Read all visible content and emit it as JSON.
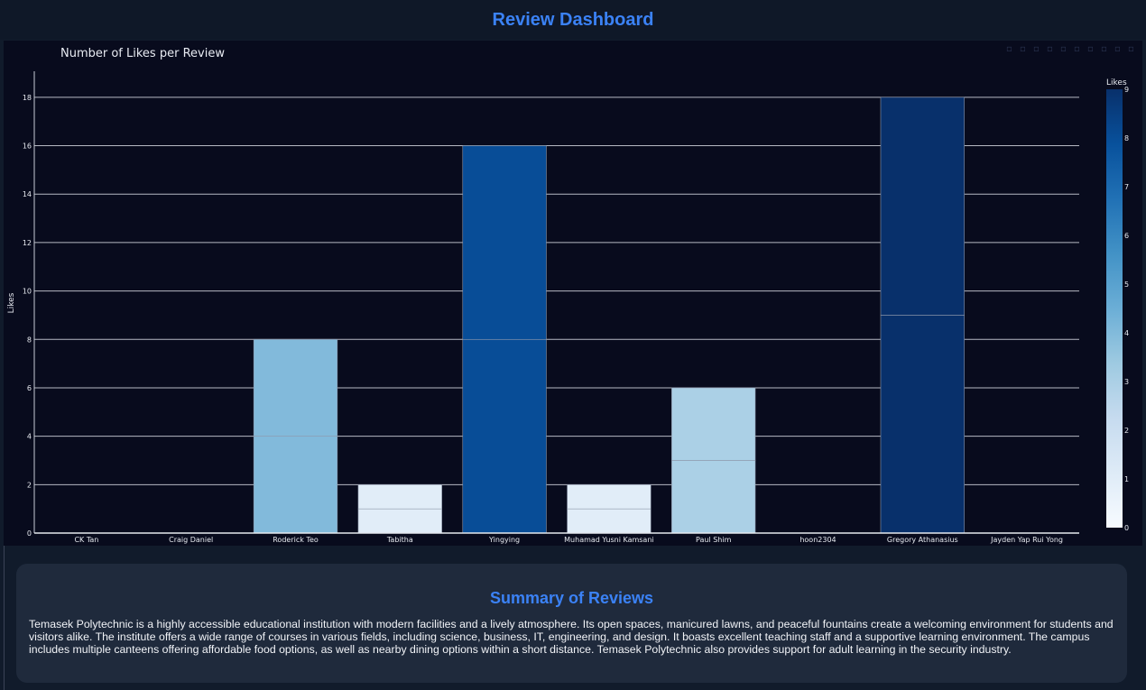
{
  "header": {
    "title": "Review Dashboard"
  },
  "chart_data": {
    "type": "bar",
    "title": "Number of Likes per Review",
    "ylabel": "Likes",
    "xlabel": "",
    "ylim": [
      0,
      19
    ],
    "yticks": [
      0,
      2,
      4,
      6,
      8,
      10,
      12,
      14,
      16,
      18
    ],
    "grid": true,
    "categories": [
      "CK Tan",
      "Craig Daniel",
      "Roderick Teo",
      "Tabitha",
      "Yingying",
      "Muhamad Yusni Kamsani",
      "Paul Shim",
      "hoon2304",
      "Gregory Athanasius",
      "Jayden Yap Rui Yong"
    ],
    "segments": [
      [
        0
      ],
      [
        0
      ],
      [
        4,
        4
      ],
      [
        1,
        1
      ],
      [
        8,
        8
      ],
      [
        1,
        1
      ],
      [
        3,
        3
      ],
      [
        0
      ],
      [
        9,
        9
      ],
      [
        0
      ]
    ],
    "values": [
      0,
      0,
      8,
      2,
      16,
      2,
      6,
      0,
      18,
      0
    ],
    "colorbar": {
      "title": "Likes",
      "range": [
        0,
        9
      ],
      "ticks": [
        0,
        1,
        2,
        3,
        4,
        5,
        6,
        7,
        8,
        9
      ],
      "colorscale": [
        "#f7fbff",
        "#deebf7",
        "#c6dbef",
        "#9ecae1",
        "#6baed6",
        "#4292c6",
        "#2171b5",
        "#08519c",
        "#08306b"
      ]
    }
  },
  "summary": {
    "title": "Summary of Reviews",
    "text": "Temasek Polytechnic is a highly accessible educational institution with modern facilities and a lively atmosphere. Its open spaces, manicured lawns, and peaceful fountains create a welcoming environment for students and visitors alike. The institute offers a wide range of courses in various fields, including science, business, IT, engineering, and design. It boasts excellent teaching staff and a supportive learning environment. The campus includes multiple canteens offering affordable food options, as well as nearby dining options within a short distance. Temasek Polytechnic also provides support for adult learning in the security industry."
  }
}
